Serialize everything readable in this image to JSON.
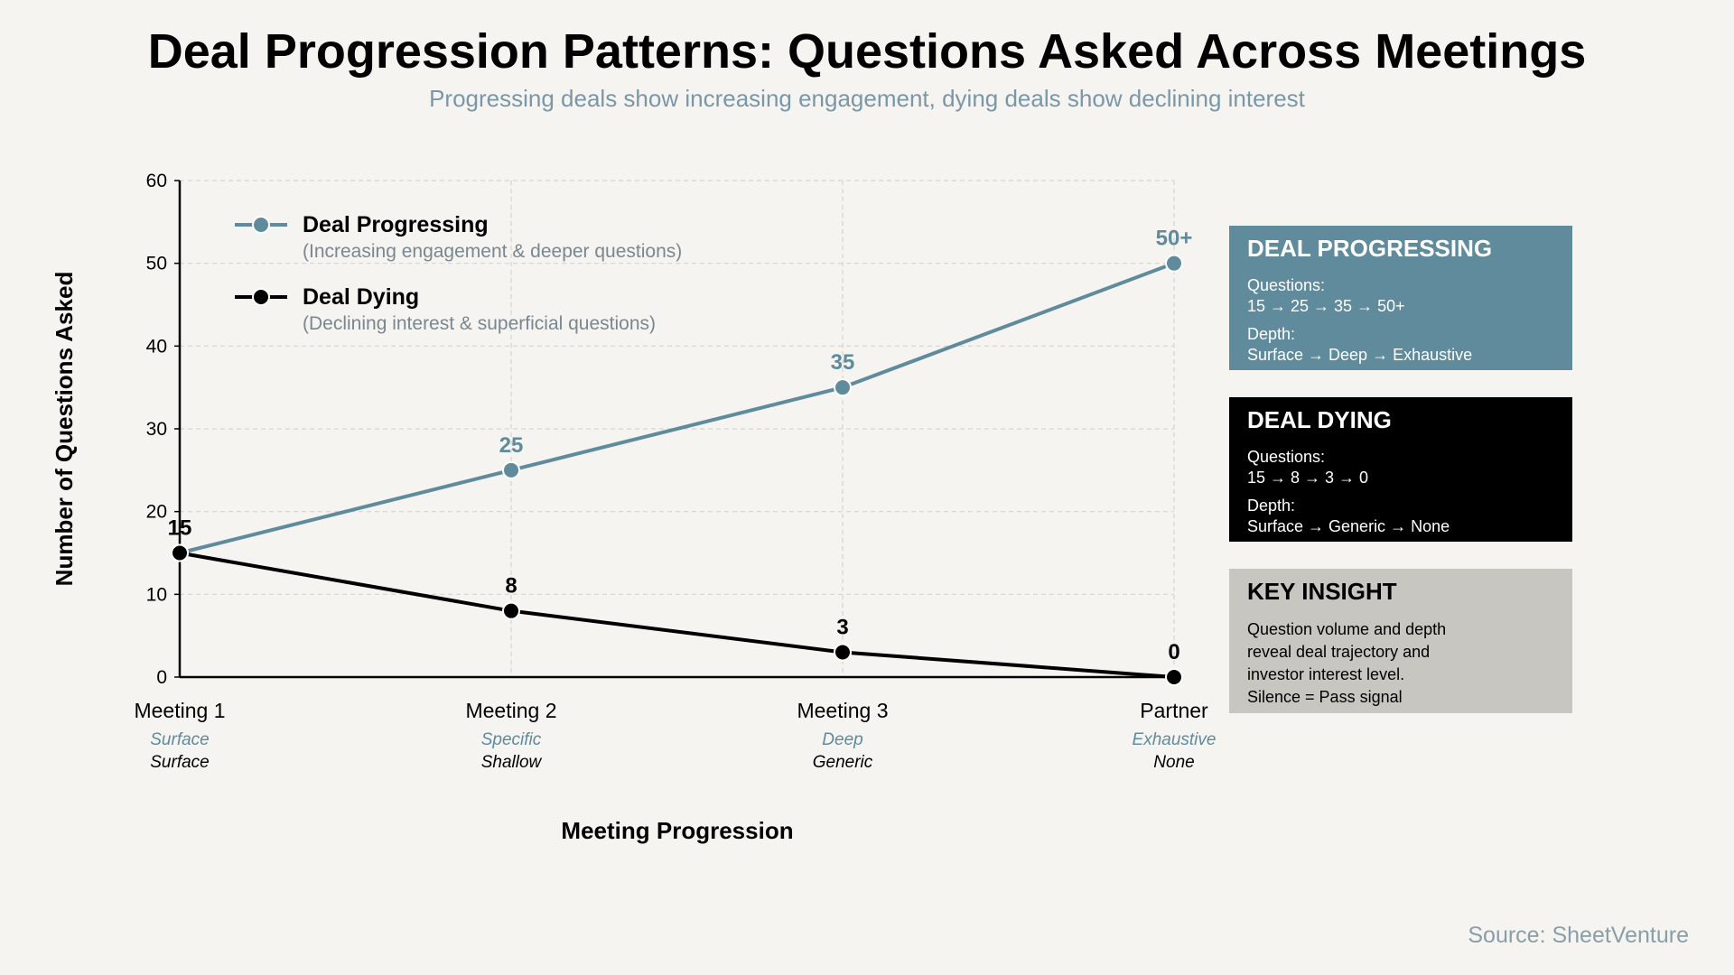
{
  "title": "Deal Progression Patterns: Questions Asked Across Meetings",
  "subtitle": "Progressing deals show increasing engagement, dying deals show declining interest",
  "source": "Source: SheetVenture",
  "colors": {
    "progressing": "#5f8b9d",
    "dying": "#000000",
    "background": "#f5f4f0",
    "insight_box": "#c8c6c0"
  },
  "legend": {
    "items": [
      {
        "name": "Deal Progressing",
        "desc": "(Increasing engagement & deeper questions)"
      },
      {
        "name": "Deal Dying",
        "desc": "(Declining interest & superficial questions)"
      }
    ]
  },
  "chart_data": {
    "type": "line",
    "xlabel": "Meeting Progression",
    "ylabel": "Number of Questions Asked",
    "ylim": [
      0,
      60
    ],
    "yticks": [
      "0",
      "10",
      "20",
      "30",
      "40",
      "50",
      "60"
    ],
    "categories": [
      "Meeting 1",
      "Meeting 2",
      "Meeting 3",
      "Partner"
    ],
    "grid": true,
    "legend_position": "top-left",
    "series": [
      {
        "name": "Deal Progressing",
        "values": [
          15,
          25,
          35,
          50
        ],
        "labels": [
          "",
          "25",
          "35",
          "50+"
        ],
        "depth": [
          "Surface",
          "Specific",
          "Deep",
          "Exhaustive"
        ]
      },
      {
        "name": "Deal Dying",
        "values": [
          15,
          8,
          3,
          0
        ],
        "labels": [
          "15",
          "8",
          "3",
          "0"
        ],
        "depth": [
          "Surface",
          "Shallow",
          "Generic",
          "None"
        ]
      }
    ]
  },
  "boxes": {
    "progressing": {
      "title": "DEAL PROGRESSING",
      "questions_label": "Questions:",
      "questions_value": "15 → 25 → 35 → 50+",
      "depth_label": "Depth:",
      "depth_value": "Surface → Deep → Exhaustive"
    },
    "dying": {
      "title": "DEAL DYING",
      "questions_label": "Questions:",
      "questions_value": "15 → 8 → 3 → 0",
      "depth_label": "Depth:",
      "depth_value": "Surface → Generic → None"
    },
    "insight": {
      "title": "KEY INSIGHT",
      "lines": [
        "Question volume and depth",
        "reveal deal trajectory and",
        "investor interest level.",
        "Silence = Pass signal"
      ]
    }
  }
}
